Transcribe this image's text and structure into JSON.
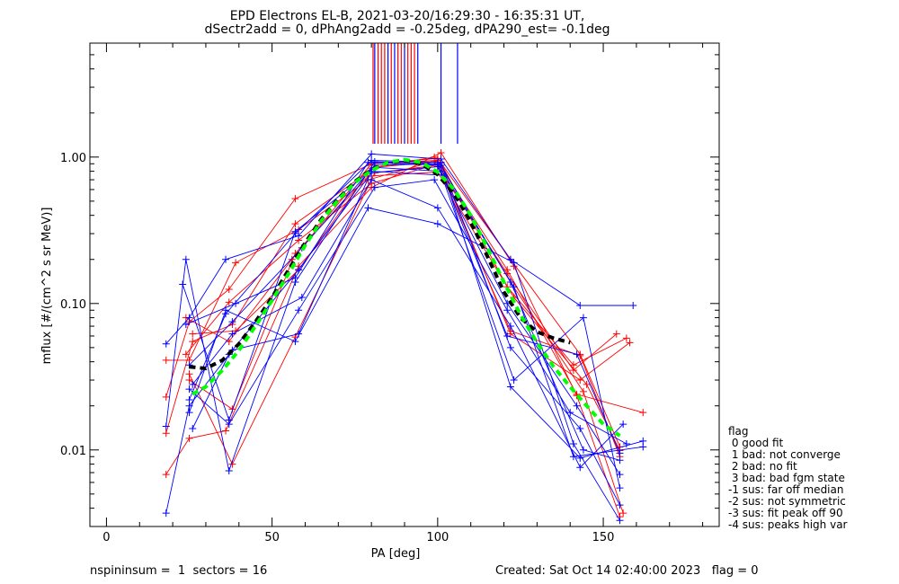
{
  "title_line1": "EPD Electrons EL-B, 2021-03-20/16:29:30 - 16:35:31 UT,",
  "title_line2": "dSectr2add = 0, dPhAng2add = -0.25deg, dPA290_est=  -0.1deg",
  "footer": {
    "left": "nspininsum =  1  sectors = 16",
    "right": "Created: Sat Oct 14 02:40:00 2023   flag = 0"
  },
  "legend": {
    "title": "flag",
    "items": [
      " 0 good fit",
      " 1 bad: not converge",
      " 2 bad: no fit",
      " 3 bad: bad fgm state",
      "-1 sus: far off median",
      "-2 sus: not symmetric",
      "-3 sus: fit peak off 90",
      "-4 sus: peaks high var"
    ]
  },
  "colors": {
    "red": "#ff0000",
    "blue": "#0000ff",
    "green": "#00ff00",
    "black": "#000000"
  },
  "chart_data": {
    "type": "line",
    "xlabel": "PA [deg]",
    "ylabel": "mflux [#/(cm^2 s sr MeV)]",
    "xlim": [
      -5,
      185
    ],
    "ylim": [
      0.003,
      6.0
    ],
    "yscale": "log",
    "x_ticks": [
      0,
      50,
      100,
      150
    ],
    "x_tick_labels": [
      "0",
      "50",
      "100",
      "150"
    ],
    "y_ticks": [
      0.01,
      0.1,
      1.0
    ],
    "y_tick_labels": [
      "0.01",
      "0.10",
      "1.00"
    ],
    "peak_markers": {
      "red": [
        80.5,
        82,
        83,
        84,
        86,
        88,
        89,
        91,
        92,
        93
      ],
      "blue": [
        81,
        85,
        87,
        90,
        94,
        101,
        106
      ]
    },
    "series": [
      {
        "color": "red",
        "x": [
          18,
          25,
          37,
          57,
          80,
          100,
          122,
          143,
          155
        ],
        "y": [
          0.023,
          0.075,
          0.125,
          0.52,
          0.9,
          0.98,
          0.2,
          0.045,
          0.0105
        ]
      },
      {
        "color": "red",
        "x": [
          18,
          25,
          36,
          58,
          80,
          101,
          123,
          142,
          155
        ],
        "y": [
          0.0068,
          0.012,
          0.0135,
          0.18,
          0.62,
          1.07,
          0.18,
          0.0235,
          0.0035
        ]
      },
      {
        "color": "red",
        "x": [
          18,
          26,
          38,
          57,
          81,
          99,
          121,
          141,
          154
        ],
        "y": [
          0.013,
          0.055,
          0.072,
          0.35,
          0.85,
          0.93,
          0.16,
          0.035,
          0.062
        ]
      },
      {
        "color": "red",
        "x": [
          18,
          25,
          39,
          58,
          79,
          100,
          122,
          144,
          156
        ],
        "y": [
          0.041,
          0.041,
          0.19,
          0.32,
          0.7,
          0.95,
          0.14,
          0.025,
          0.0037
        ]
      },
      {
        "color": "red",
        "x": [
          25,
          38,
          57,
          81,
          100,
          122,
          143,
          155
        ],
        "y": [
          0.033,
          0.008,
          0.059,
          0.78,
          0.88,
          0.065,
          0.044,
          0.009
        ]
      },
      {
        "color": "red",
        "x": [
          24,
          37,
          58,
          80,
          101,
          121,
          141,
          157
        ],
        "y": [
          0.045,
          0.102,
          0.27,
          0.66,
          0.91,
          0.13,
          0.038,
          0.058
        ]
      },
      {
        "color": "red",
        "x": [
          25,
          38,
          57,
          79,
          100,
          123,
          145,
          155
        ],
        "y": [
          0.03,
          0.019,
          0.22,
          0.74,
          0.79,
          0.11,
          0.028,
          0.0099
        ]
      },
      {
        "color": "red",
        "x": [
          26,
          39,
          58,
          80,
          99,
          121,
          142,
          162
        ],
        "y": [
          0.062,
          0.065,
          0.17,
          0.84,
          1.0,
          0.17,
          0.024,
          0.018
        ]
      },
      {
        "color": "red",
        "x": [
          24,
          37,
          56,
          80,
          100,
          122,
          143,
          158
        ],
        "y": [
          0.08,
          0.055,
          0.2,
          0.9,
          0.95,
          0.062,
          0.03,
          0.054
        ]
      },
      {
        "color": "blue",
        "x": [
          18,
          25,
          36,
          58,
          80,
          101,
          122,
          143,
          159
        ],
        "y": [
          0.053,
          0.08,
          0.2,
          0.29,
          1.05,
          0.97,
          0.2,
          0.097,
          0.097
        ]
      },
      {
        "color": "blue",
        "x": [
          18,
          24,
          37,
          57,
          81,
          100,
          123,
          144,
          155
        ],
        "y": [
          0.0145,
          0.2,
          0.0072,
          0.14,
          0.93,
          0.9,
          0.03,
          0.08,
          0.0055
        ]
      },
      {
        "color": "blue",
        "x": [
          18,
          25,
          38,
          58,
          80,
          102,
          122,
          143,
          162
        ],
        "y": [
          0.0037,
          0.02,
          0.048,
          0.062,
          0.8,
          0.75,
          0.027,
          0.0088,
          0.0115
        ]
      },
      {
        "color": "blue",
        "x": [
          23,
          37,
          57,
          81,
          101,
          121,
          142,
          155
        ],
        "y": [
          0.135,
          0.016,
          0.31,
          0.85,
          0.8,
          0.06,
          0.045,
          0.0095
        ]
      },
      {
        "color": "blue",
        "x": [
          25,
          36,
          57,
          79,
          100,
          123,
          141,
          155
        ],
        "y": [
          0.018,
          0.09,
          0.055,
          0.45,
          0.35,
          0.19,
          0.011,
          0.0033
        ]
      },
      {
        "color": "blue",
        "x": [
          26,
          38,
          59,
          80,
          100,
          122,
          143,
          156
        ],
        "y": [
          0.028,
          0.062,
          0.11,
          0.7,
          0.45,
          0.07,
          0.0076,
          0.015
        ]
      },
      {
        "color": "blue",
        "x": [
          25,
          37,
          58,
          81,
          99,
          121,
          140,
          157
        ],
        "y": [
          0.026,
          0.015,
          0.09,
          0.62,
          0.7,
          0.09,
          0.018,
          0.011
        ]
      },
      {
        "color": "blue",
        "x": [
          24,
          39,
          57,
          79,
          101,
          122,
          144,
          155
        ],
        "y": [
          0.072,
          0.1,
          0.15,
          0.92,
          0.88,
          0.14,
          0.01,
          0.0085
        ]
      },
      {
        "color": "blue",
        "x": [
          26,
          37,
          58,
          80,
          100,
          121,
          142,
          155
        ],
        "y": [
          0.014,
          0.045,
          0.17,
          0.78,
          0.86,
          0.1,
          0.02,
          0.0068
        ]
      },
      {
        "color": "blue",
        "x": [
          25,
          38,
          59,
          81,
          100,
          123,
          141,
          162
        ],
        "y": [
          0.038,
          0.075,
          0.24,
          0.88,
          0.9,
          0.13,
          0.009,
          0.0105
        ]
      },
      {
        "color": "blue",
        "x": [
          25,
          36,
          57,
          80,
          101,
          122,
          143,
          155
        ],
        "y": [
          0.022,
          0.085,
          0.3,
          0.95,
          0.92,
          0.05,
          0.014,
          0.0042
        ]
      }
    ],
    "fits": [
      {
        "color": "black",
        "style": "dashed",
        "x": [
          25,
          30,
          35,
          40,
          45,
          50,
          55,
          60,
          65,
          70,
          75,
          80,
          85,
          90,
          95,
          100,
          105,
          110,
          115,
          120,
          125,
          130,
          135,
          140
        ],
        "y": [
          0.037,
          0.036,
          0.041,
          0.053,
          0.075,
          0.11,
          0.17,
          0.26,
          0.38,
          0.52,
          0.68,
          0.82,
          0.92,
          0.95,
          0.9,
          0.76,
          0.56,
          0.36,
          0.21,
          0.12,
          0.08,
          0.064,
          0.058,
          0.054
        ]
      },
      {
        "color": "green",
        "style": "dashed",
        "x": [
          26,
          30,
          35,
          40,
          45,
          50,
          55,
          60,
          65,
          70,
          75,
          80,
          85,
          90,
          95,
          100,
          105,
          110,
          115,
          120,
          125,
          130,
          135,
          140,
          145,
          150,
          155
        ],
        "y": [
          0.024,
          0.027,
          0.035,
          0.048,
          0.07,
          0.105,
          0.16,
          0.25,
          0.37,
          0.51,
          0.67,
          0.81,
          0.92,
          0.96,
          0.92,
          0.79,
          0.6,
          0.4,
          0.24,
          0.14,
          0.084,
          0.054,
          0.037,
          0.027,
          0.02,
          0.015,
          0.0125
        ]
      }
    ]
  }
}
